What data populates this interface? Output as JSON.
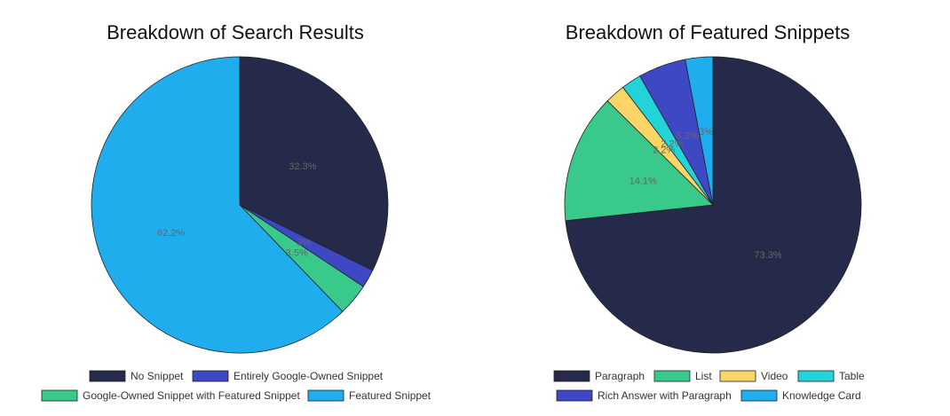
{
  "chart_data": [
    {
      "type": "pie",
      "title": "Breakdown of Search Results",
      "categories": [
        "No Snippet",
        "Entirely Google-Owned Snippet",
        "Google-Owned Snippet with Featured Snippet",
        "Featured Snippet"
      ],
      "values": [
        32.3,
        2,
        3.5,
        62.2
      ],
      "labels": [
        "32.3%",
        "2%",
        "3.5%",
        "62.2%"
      ],
      "colors": [
        "#252a4a",
        "#3f48c4",
        "#38c98b",
        "#1fadee"
      ],
      "start_angle": "12 o'clock",
      "direction": "clockwise",
      "legend_position": "bottom"
    },
    {
      "type": "pie",
      "title": "Breakdown of Featured Snippets",
      "categories": [
        "Paragraph",
        "List",
        "Video",
        "Table",
        "Rich Answer with Paragraph",
        "Knowledge Card"
      ],
      "values": [
        73.3,
        14.1,
        2.2,
        2.2,
        5.2,
        3
      ],
      "labels": [
        "73.3%",
        "14.1%",
        "2.2%",
        "2.2%",
        "5.2%",
        "3%"
      ],
      "colors": [
        "#252a4a",
        "#38c98b",
        "#fcd568",
        "#22d3d8",
        "#3f48c4",
        "#1fadee"
      ],
      "start_angle": "12 o'clock",
      "direction": "clockwise",
      "legend_position": "bottom"
    }
  ]
}
